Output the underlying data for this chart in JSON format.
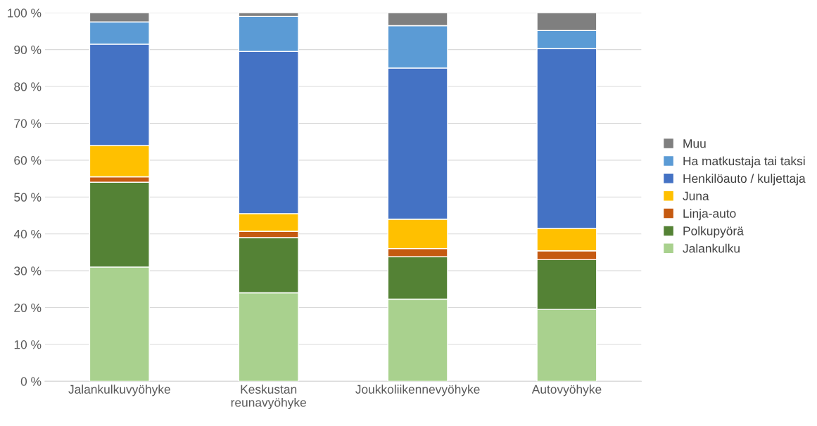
{
  "chart_data": {
    "type": "bar",
    "stacked": true,
    "categories": [
      "Jalankulkuvyöhyke",
      "Keskustan\nreunavyöhyke",
      "Joukkoliikennevyöhyke",
      "Autovyöhyke"
    ],
    "series": [
      {
        "name": "Jalankulku",
        "color": "#a9d18e",
        "values": [
          31,
          24,
          22.3,
          19.5
        ]
      },
      {
        "name": "Polkupyörä",
        "color": "#548235",
        "values": [
          23,
          15,
          11.5,
          13.5
        ]
      },
      {
        "name": "Linja-auto",
        "color": "#c55a11",
        "values": [
          1.5,
          1.7,
          2.2,
          2.4
        ]
      },
      {
        "name": "Juna",
        "color": "#ffc000",
        "values": [
          8.5,
          4.8,
          8,
          6.1
        ]
      },
      {
        "name": "Henkilöauto / kuljettaja",
        "color": "#4472c4",
        "values": [
          27.5,
          44,
          41,
          48.8
        ]
      },
      {
        "name": "Ha matkustaja tai taksi",
        "color": "#5b9bd5",
        "values": [
          6,
          9.5,
          11.5,
          4.9
        ]
      },
      {
        "name": "Muu",
        "color": "#7f7f7f",
        "values": [
          2.5,
          1,
          3.5,
          4.8
        ]
      }
    ],
    "ylim": [
      0,
      100
    ],
    "yticks": [
      {
        "value": 0,
        "label": "0 %"
      },
      {
        "value": 10,
        "label": "10 %"
      },
      {
        "value": 20,
        "label": "20 %"
      },
      {
        "value": 30,
        "label": "30 %"
      },
      {
        "value": 40,
        "label": "40 %"
      },
      {
        "value": 50,
        "label": "50 %"
      },
      {
        "value": 60,
        "label": "60 %"
      },
      {
        "value": 70,
        "label": "70 %"
      },
      {
        "value": 80,
        "label": "80 %"
      },
      {
        "value": 90,
        "label": "90 %"
      },
      {
        "value": 100,
        "label": "100 %"
      }
    ],
    "grid": "y",
    "legend": "right"
  }
}
